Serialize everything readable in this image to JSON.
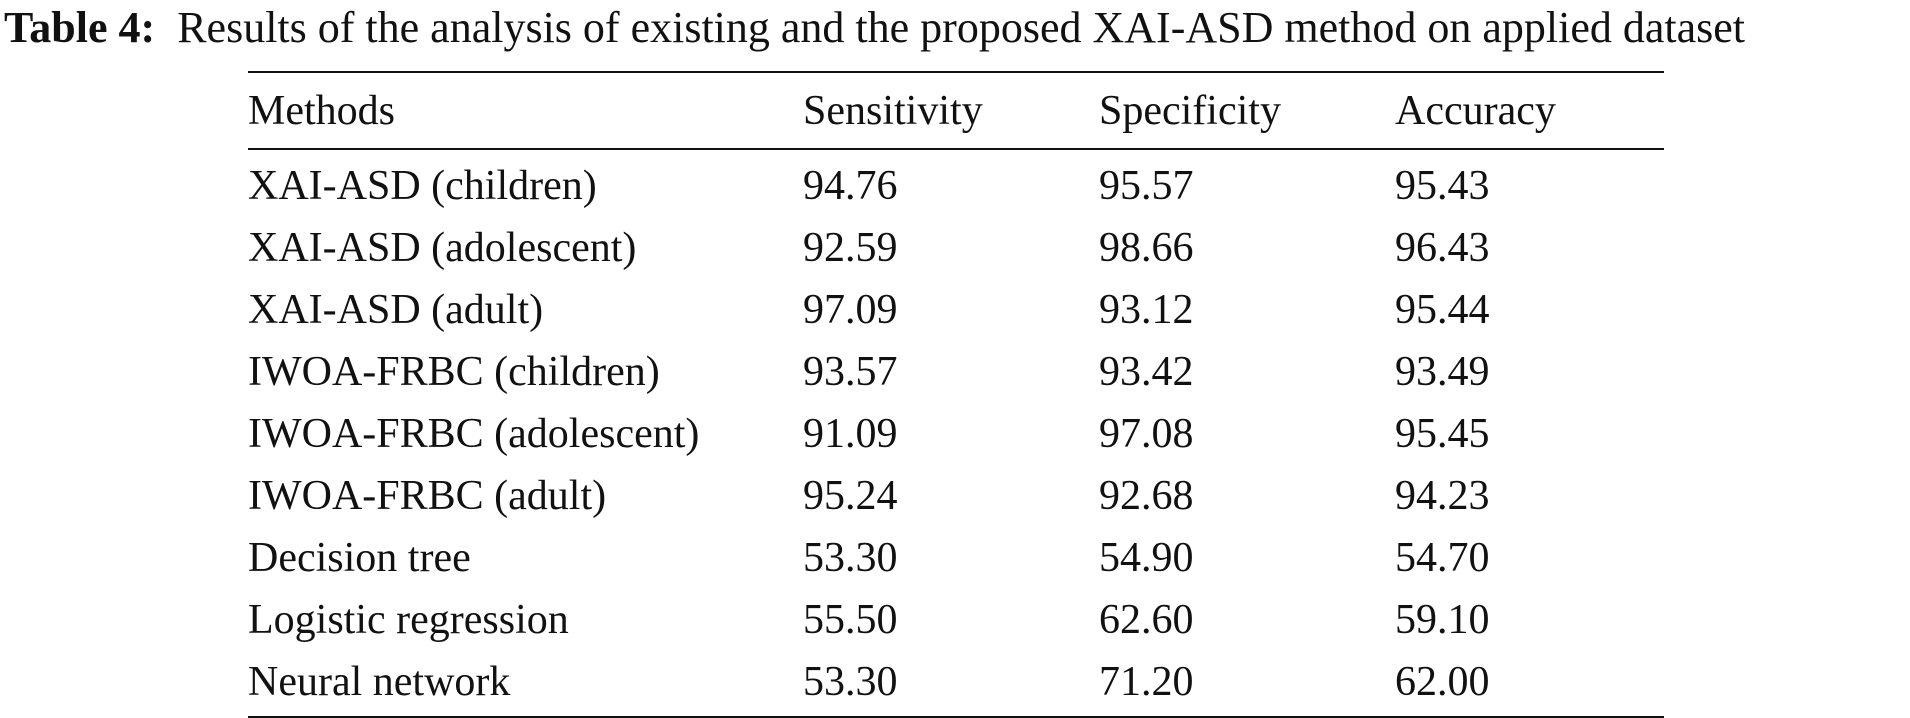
{
  "caption": {
    "label": "Table 4:",
    "text": "Results of the analysis of existing and the proposed XAI-ASD method on applied dataset"
  },
  "table": {
    "headers": [
      "Methods",
      "Sensitivity",
      "Specificity",
      "Accuracy"
    ],
    "rows": [
      [
        "XAI-ASD (children)",
        "94.76",
        "95.57",
        "95.43"
      ],
      [
        "XAI-ASD (adolescent)",
        "92.59",
        "98.66",
        "96.43"
      ],
      [
        "XAI-ASD (adult)",
        "97.09",
        "93.12",
        "95.44"
      ],
      [
        "IWOA-FRBC (children)",
        "93.57",
        "93.42",
        "93.49"
      ],
      [
        "IWOA-FRBC (adolescent)",
        "91.09",
        "97.08",
        "95.45"
      ],
      [
        "IWOA-FRBC (adult)",
        "95.24",
        "92.68",
        "94.23"
      ],
      [
        "Decision tree",
        "53.30",
        "54.90",
        "54.70"
      ],
      [
        "Logistic regression",
        "55.50",
        "62.60",
        "59.10"
      ],
      [
        "Neural network",
        "53.30",
        "71.20",
        "62.00"
      ]
    ]
  }
}
